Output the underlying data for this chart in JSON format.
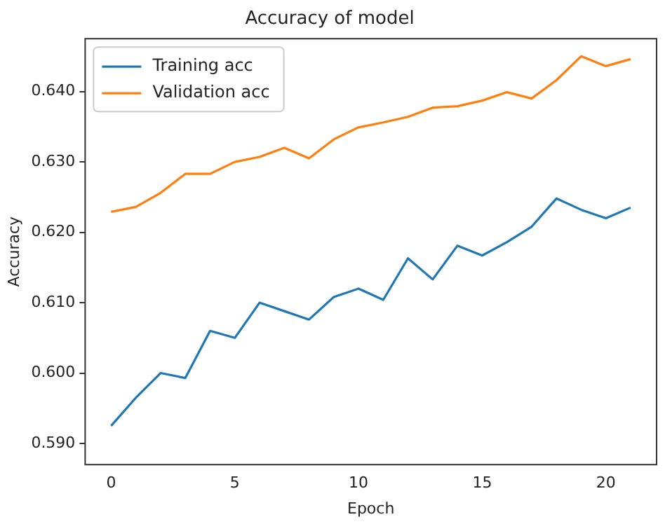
{
  "chart_data": {
    "type": "line",
    "title": "Accuracy of model",
    "xlabel": "Epoch",
    "ylabel": "Accuracy",
    "x": [
      0,
      1,
      2,
      3,
      4,
      5,
      6,
      7,
      8,
      9,
      10,
      11,
      12,
      13,
      14,
      15,
      16,
      17,
      18,
      19,
      20,
      21
    ],
    "series": [
      {
        "name": "Training acc",
        "color": "#1f77b4",
        "values": [
          0.5925,
          0.5965,
          0.6,
          0.5993,
          0.606,
          0.605,
          0.61,
          0.6088,
          0.6076,
          0.6108,
          0.612,
          0.6104,
          0.6163,
          0.6133,
          0.6181,
          0.6167,
          0.6186,
          0.6208,
          0.6248,
          0.6232,
          0.622,
          0.6235
        ]
      },
      {
        "name": "Validation acc",
        "color": "#ff7f0e",
        "values": [
          0.6229,
          0.6236,
          0.6256,
          0.6283,
          0.6283,
          0.63,
          0.6307,
          0.632,
          0.6305,
          0.6332,
          0.6349,
          0.6356,
          0.6364,
          0.6377,
          0.6379,
          0.6387,
          0.6399,
          0.639,
          0.6416,
          0.645,
          0.6436,
          0.6446
        ]
      }
    ],
    "xlim": [
      -1.05,
      22.05
    ],
    "xticks": [
      0,
      5,
      10,
      15,
      20
    ],
    "ylim": [
      0.587,
      0.6475
    ],
    "yticks": [
      {
        "value": 0.59,
        "label": "0.590"
      },
      {
        "value": 0.6,
        "label": "0.600"
      },
      {
        "value": 0.61,
        "label": "0.610"
      },
      {
        "value": 0.62,
        "label": "0.620"
      },
      {
        "value": 0.63,
        "label": "0.630"
      },
      {
        "value": 0.64,
        "label": "0.640"
      }
    ],
    "grid": false,
    "legend": "top left",
    "marker": "none",
    "line_style": "solid"
  }
}
